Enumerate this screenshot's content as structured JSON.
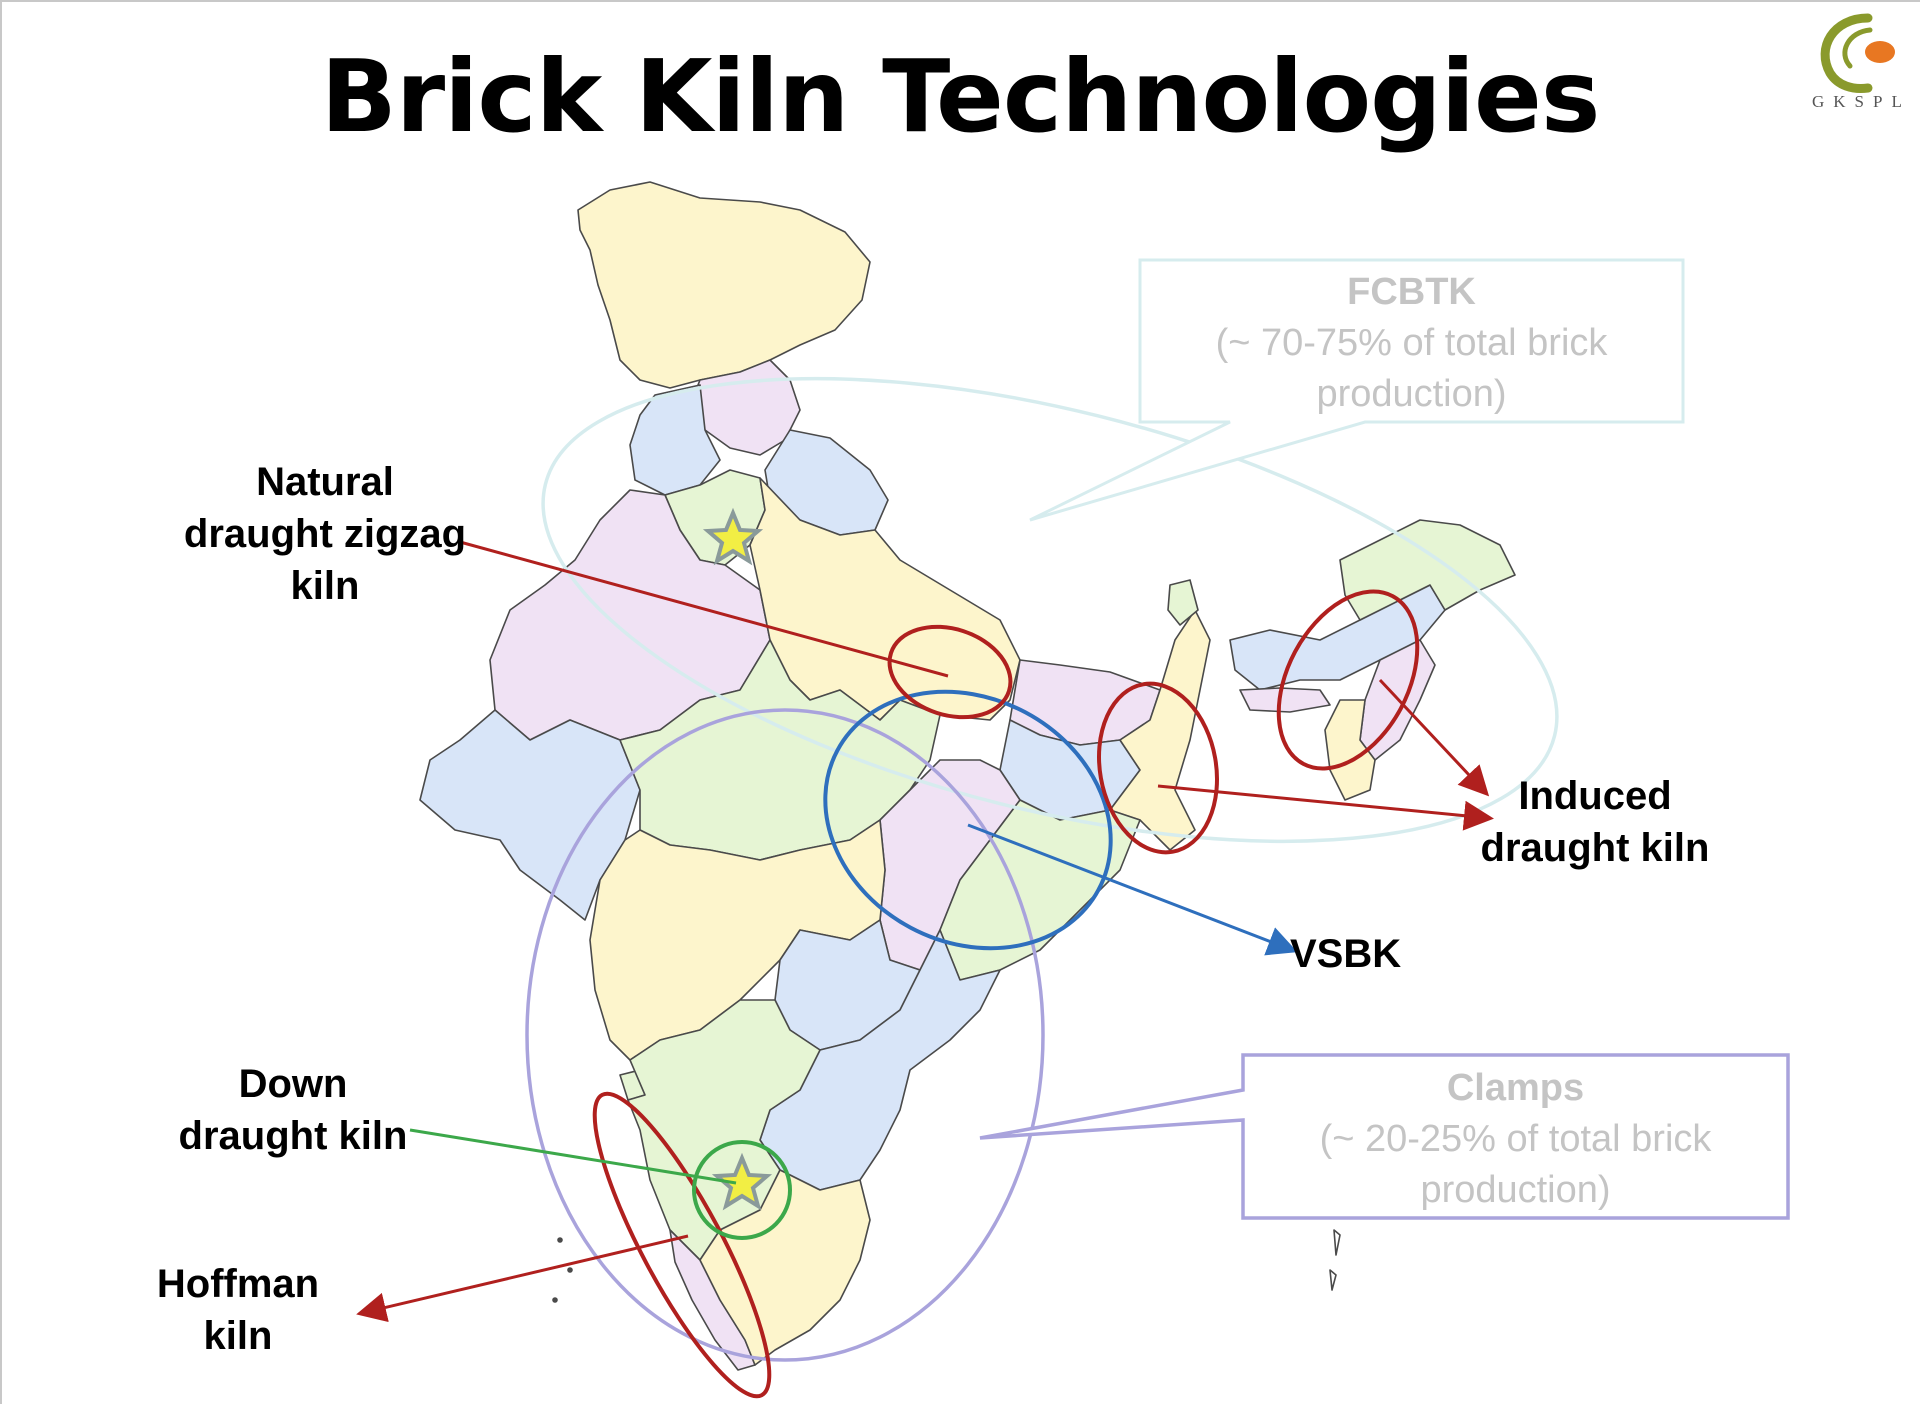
{
  "title": "Brick Kiln Technologies",
  "logo": {
    "text": "GKSPL",
    "colors": {
      "ring": "#8a9a2c",
      "dot": "#e87722"
    }
  },
  "labels": {
    "natural_zigzag": [
      "Natural",
      "draught zigzag",
      "kiln"
    ],
    "induced": [
      "Induced",
      "draught kiln"
    ],
    "vsbk": "VSBK",
    "down_draught": [
      "Down",
      "draught kiln"
    ],
    "hoffman": [
      "Hoffman",
      "kiln"
    ]
  },
  "callouts": {
    "fcbtk": {
      "name": "FCBTK",
      "lines": [
        "(~ 70-75% of total brick",
        "production)"
      ]
    },
    "clamps": {
      "name": "Clamps",
      "lines": [
        "(~ 20-25% of total brick",
        "production)"
      ]
    }
  },
  "colors": {
    "red": "#b0201e",
    "blue": "#2e6fbd",
    "green": "#3ca84a",
    "lavender": "#a9a3dc",
    "pale_cyan": "#d6ecee",
    "star": "#f2ee44",
    "state_yellow": "#fdf5cc",
    "state_pink": "#f0e2f4",
    "state_blue": "#d8e5f8",
    "state_green": "#e6f5d4"
  }
}
